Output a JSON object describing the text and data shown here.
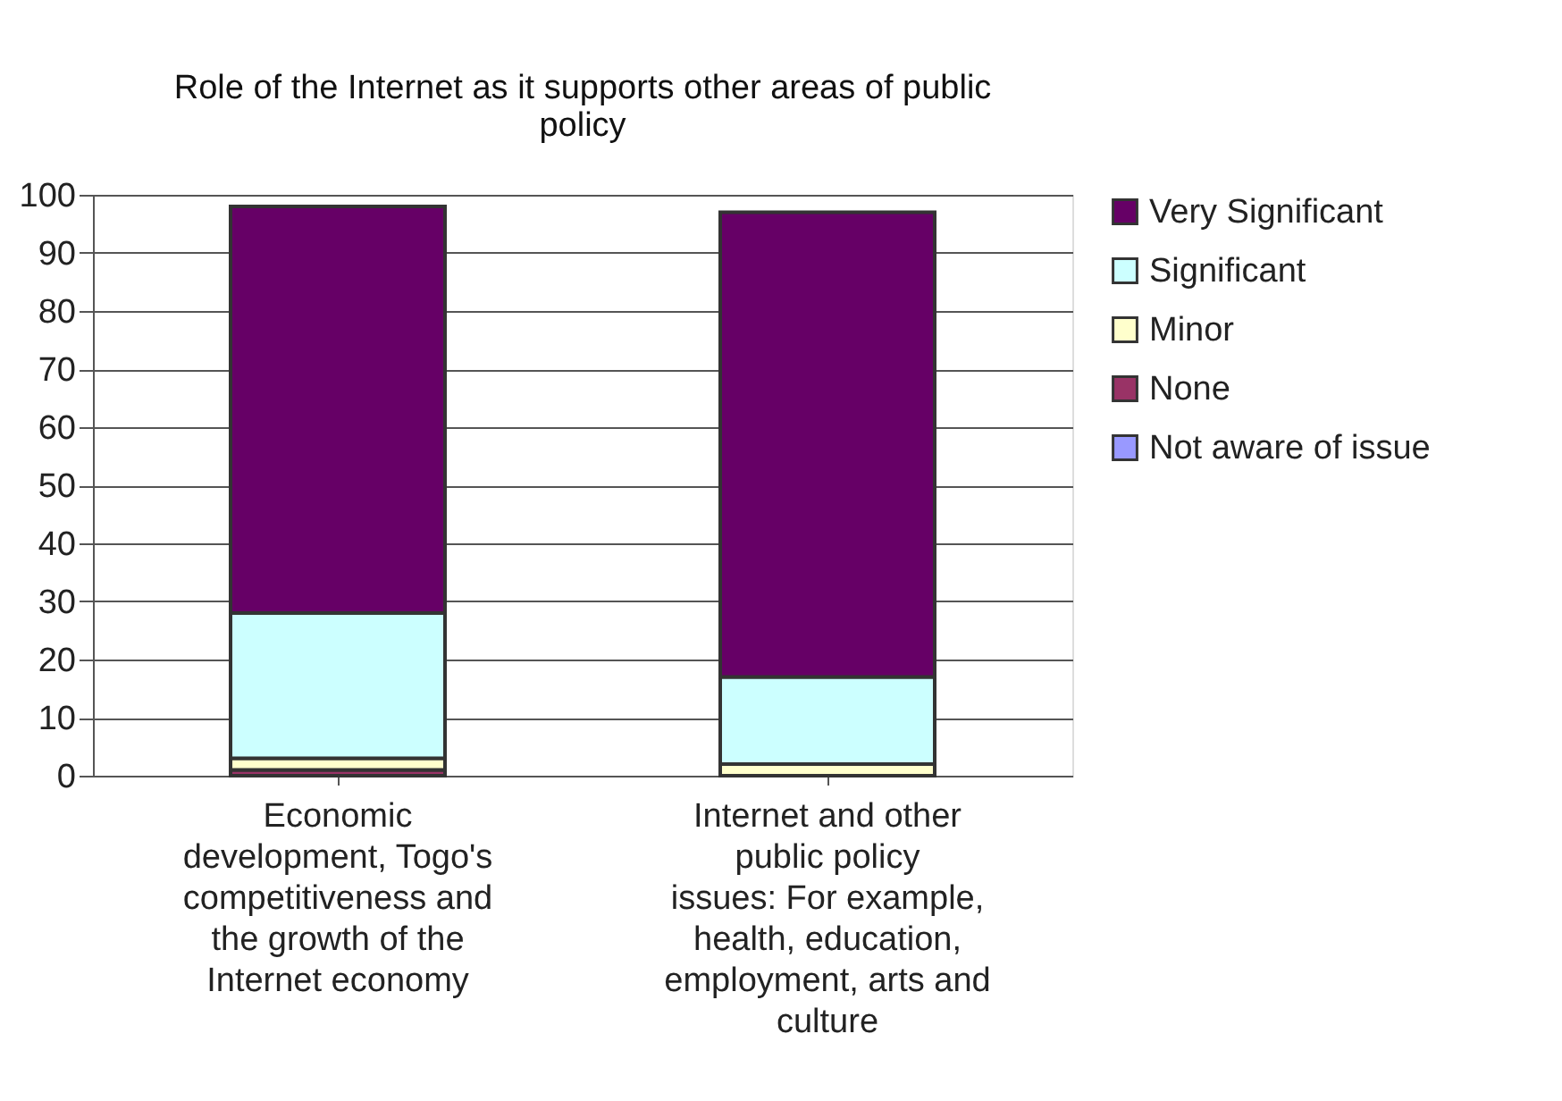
{
  "chart_data": {
    "type": "bar",
    "title": "Role of the Internet as it supports other areas of public policy",
    "categories": [
      "Economic development, Togo's competitiveness and the growth of the Internet economy",
      "Internet and other public policy issues: For example, health, education, employment, arts and culture"
    ],
    "stacked": true,
    "series": [
      {
        "name": "Not aware of issue",
        "color": "#9999ff",
        "values": [
          0,
          0
        ]
      },
      {
        "name": "None",
        "color": "#993366",
        "values": [
          1,
          0
        ]
      },
      {
        "name": "Minor",
        "color": "#ffffcc",
        "values": [
          2,
          2
        ]
      },
      {
        "name": "Significant",
        "color": "#ccffff",
        "values": [
          25,
          15
        ]
      },
      {
        "name": "Very Significant",
        "color": "#660066",
        "values": [
          70,
          80
        ]
      }
    ],
    "ylim": [
      0,
      100
    ],
    "yticks": [
      0,
      10,
      20,
      30,
      40,
      50,
      60,
      70,
      80,
      90,
      100
    ],
    "grid": "y",
    "legend": "right"
  }
}
